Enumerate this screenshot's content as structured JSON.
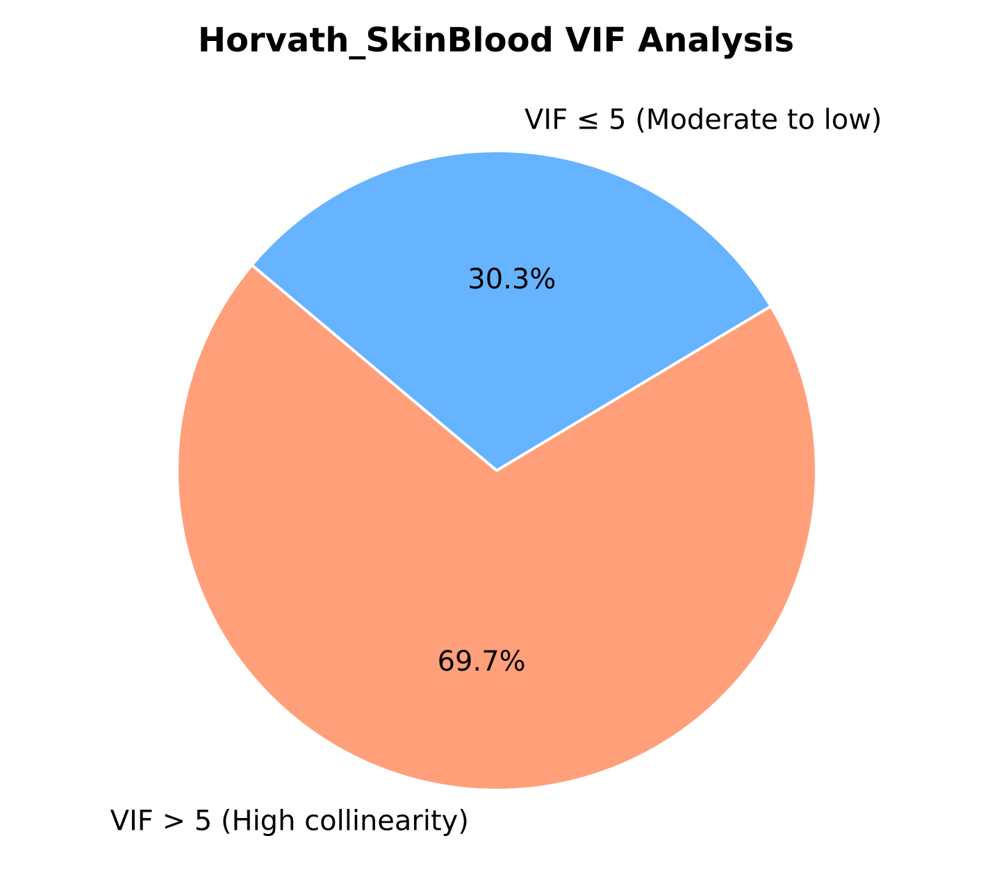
{
  "chart_data": {
    "type": "pie",
    "title": "Horvath_SkinBlood VIF Analysis",
    "categories": [
      "VIF > 5 (High collinearity)",
      "VIF ≤ 5 (Moderate to low)"
    ],
    "values": [
      69.7,
      30.3
    ],
    "value_labels": [
      "69.7%",
      "30.3%"
    ],
    "colors": [
      "#FFA07A",
      "#66B3FF"
    ],
    "edge_color": "#FFFFFF",
    "start_angle_deg": 140,
    "legend": "none"
  }
}
